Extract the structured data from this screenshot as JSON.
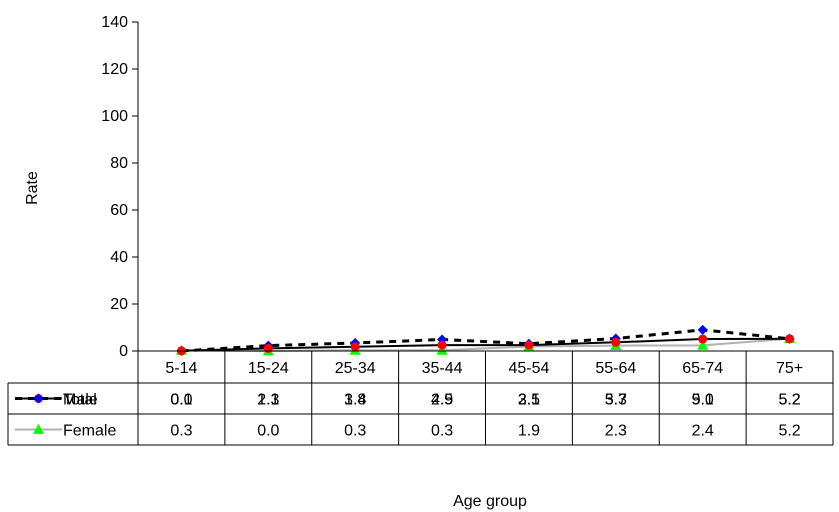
{
  "chart_data": {
    "type": "line",
    "categories": [
      "5-14",
      "15-24",
      "25-34",
      "35-44",
      "45-54",
      "55-64",
      "65-74",
      "75+"
    ],
    "series": [
      {
        "name": "Total",
        "values": [
          0.1,
          1.1,
          1.8,
          2.5,
          2.5,
          3.7,
          5.1,
          5.2
        ],
        "color": "#000000",
        "marker_color": "#ff0000",
        "marker": "circle",
        "line": "solid"
      },
      {
        "name": "Male",
        "values": [
          0.0,
          2.3,
          3.4,
          4.9,
          3.1,
          5.3,
          9.0,
          5.2
        ],
        "color": "#000000",
        "marker_color": "#0000ff",
        "marker": "diamond",
        "line": "dashed"
      },
      {
        "name": "Female",
        "values": [
          0.3,
          0.0,
          0.3,
          0.3,
          1.9,
          2.3,
          2.4,
          5.2
        ],
        "color": "#b0b0b0",
        "marker_color": "#00ff00",
        "marker": "triangle",
        "line": "solid"
      }
    ],
    "table_values": {
      "Total": [
        "0.1",
        "1.1",
        "1.8",
        "2.5",
        "2.5",
        "3.7",
        "5.1",
        "5.2"
      ],
      "Male": [
        "0.0",
        "2.3",
        "3.4",
        "4.9",
        "3.1",
        "5.3",
        "9.0",
        "5.2"
      ],
      "Female": [
        "0.3",
        "0.0",
        "0.3",
        "0.3",
        "1.9",
        "2.3",
        "2.4",
        "5.2"
      ]
    },
    "yticks": [
      "0",
      "20",
      "40",
      "60",
      "80",
      "100",
      "120",
      "140"
    ],
    "ylim": [
      0,
      140
    ],
    "ylabel": "Rate",
    "xlabel": "Age group",
    "grid": false,
    "legend": "data-table"
  }
}
